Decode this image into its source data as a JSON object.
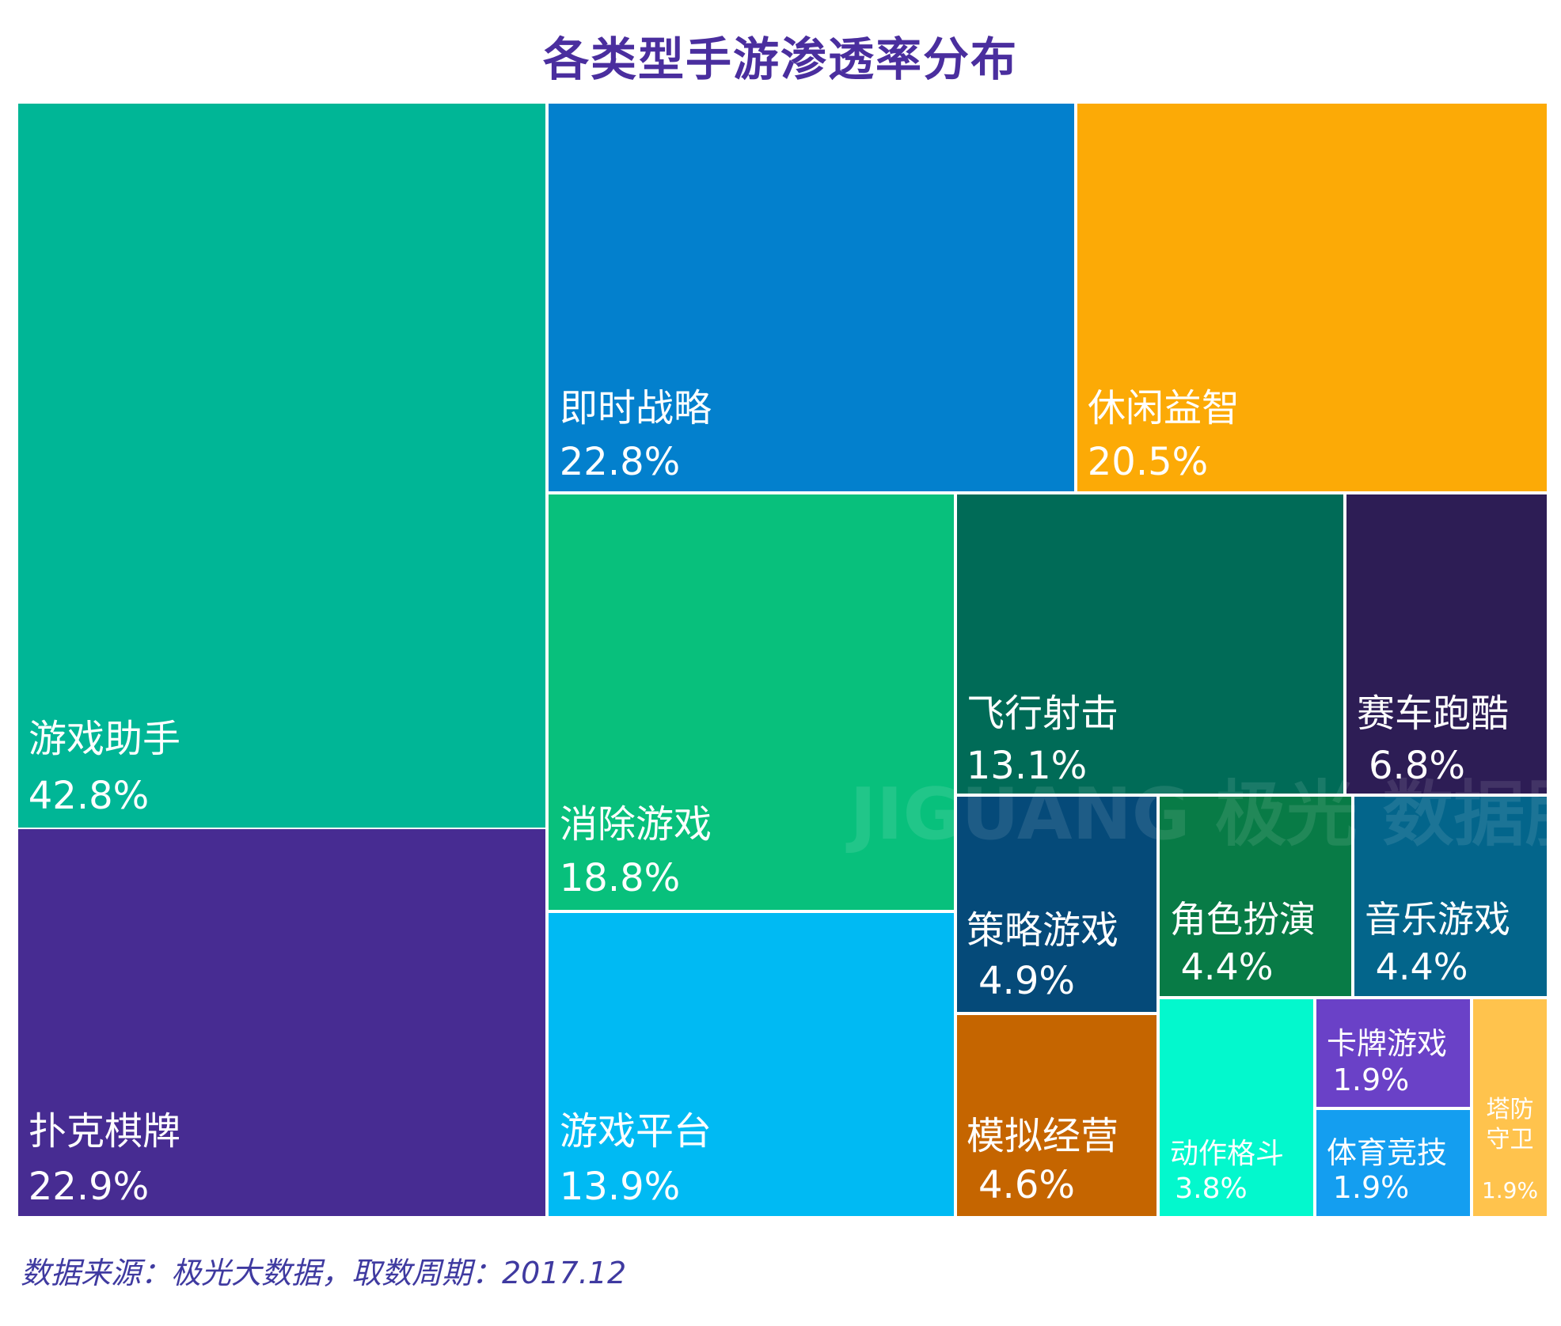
{
  "chart_data": {
    "type": "treemap",
    "title": "各类型手游渗透率分布",
    "source": "数据来源：极光大数据，取数周期：2017.12",
    "watermark": "JIGUANG 极光 数据服务",
    "items": [
      {
        "name": "游戏助手",
        "value": "42.8%",
        "color": "#00b696"
      },
      {
        "name": "扑克棋牌",
        "value": "22.9%",
        "color": "#472c92"
      },
      {
        "name": "即时战略",
        "value": "22.8%",
        "color": "#0380cd"
      },
      {
        "name": "休闲益智",
        "value": "20.5%",
        "color": "#fcaa06"
      },
      {
        "name": "消除游戏",
        "value": "18.8%",
        "color": "#08c07c"
      },
      {
        "name": "游戏平台",
        "value": "13.9%",
        "color": "#00baf3"
      },
      {
        "name": "飞行射击",
        "value": "13.1%",
        "color": "#006b57"
      },
      {
        "name": "赛车跑酷",
        "value": "6.8%",
        "color": "#2d1d55"
      },
      {
        "name": "策略游戏",
        "value": "4.9%",
        "color": "#054a79"
      },
      {
        "name": "角色扮演",
        "value": "4.4%",
        "color": "#087b46"
      },
      {
        "name": "音乐游戏",
        "value": "4.4%",
        "color": "#03658b"
      },
      {
        "name": "模拟经营",
        "value": "4.6%",
        "color": "#c56500"
      },
      {
        "name": "动作格斗",
        "value": "3.8%",
        "color": "#03f8cd"
      },
      {
        "name": "卡牌游戏",
        "value": "1.9%",
        "color": "#6a41c7"
      },
      {
        "name": "体育竞技",
        "value": "1.9%",
        "color": "#149ef0"
      },
      {
        "name": "塔防守卫",
        "value": "1.9%",
        "color": "#ffc34d"
      }
    ]
  }
}
